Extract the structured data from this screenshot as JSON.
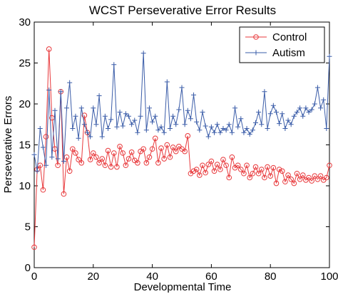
{
  "chart_data": {
    "type": "line",
    "title": "WCST Perseverative Error Results",
    "xlabel": "Developmental Time",
    "ylabel": "Perseverative Errors",
    "xlim": [
      0,
      100
    ],
    "ylim": [
      0,
      30
    ],
    "xticks": [
      0,
      20,
      40,
      60,
      80,
      100
    ],
    "yticks": [
      0,
      5,
      10,
      15,
      20,
      25,
      30
    ],
    "grid": false,
    "legend_position": "top-right",
    "series": [
      {
        "name": "Control",
        "color": "#e8383b",
        "marker": "circle",
        "x": [
          0,
          1,
          2,
          3,
          4,
          5,
          6,
          7,
          8,
          9,
          10,
          11,
          12,
          13,
          14,
          15,
          16,
          17,
          18,
          19,
          20,
          21,
          22,
          23,
          24,
          25,
          26,
          27,
          28,
          29,
          30,
          31,
          32,
          33,
          34,
          35,
          36,
          37,
          38,
          39,
          40,
          41,
          42,
          43,
          44,
          45,
          46,
          47,
          48,
          49,
          50,
          51,
          52,
          53,
          54,
          55,
          56,
          57,
          58,
          59,
          60,
          61,
          62,
          63,
          64,
          65,
          66,
          67,
          68,
          69,
          70,
          71,
          72,
          73,
          74,
          75,
          76,
          77,
          78,
          79,
          80,
          81,
          82,
          83,
          84,
          85,
          86,
          87,
          88,
          89,
          90,
          91,
          92,
          93,
          94,
          95,
          96,
          97,
          98,
          99,
          100
        ],
        "y": [
          2.5,
          12,
          12.5,
          9.5,
          16,
          26.7,
          18.3,
          14.5,
          12.5,
          21.5,
          9,
          13.5,
          11.8,
          14.5,
          14,
          13.2,
          12.8,
          18.6,
          16.5,
          13.2,
          14,
          13.5,
          12.8,
          13.3,
          12.5,
          14.3,
          12.3,
          14,
          12.3,
          14.8,
          14,
          12.5,
          13.3,
          14.1,
          13.1,
          12.8,
          14.2,
          14.5,
          12.8,
          13.5,
          14.5,
          15.8,
          12.8,
          14.6,
          13.3,
          15,
          13.5,
          14.7,
          14.2,
          14.8,
          14.5,
          14.2,
          16.1,
          11.5,
          11.8,
          12,
          11.3,
          12.5,
          11.6,
          12.6,
          13,
          11.8,
          12.6,
          12,
          13.2,
          12.5,
          11,
          13.5,
          12.2,
          12.5,
          12,
          11.5,
          12.5,
          11,
          11.5,
          12.3,
          11.5,
          12,
          11,
          12.3,
          11.2,
          12.2,
          10.3,
          12,
          11.8,
          10.5,
          11.3,
          10.8,
          10.3,
          11.5,
          10.8,
          11.3,
          10.7,
          11,
          10.6,
          11.2,
          10.8,
          11.2,
          10.7,
          11,
          12.5
        ]
      },
      {
        "name": "Autism",
        "color": "#3a5ca8",
        "marker": "plus",
        "x": [
          0,
          1,
          2,
          3,
          4,
          5,
          6,
          7,
          8,
          9,
          10,
          11,
          12,
          13,
          14,
          15,
          16,
          17,
          18,
          19,
          20,
          21,
          22,
          23,
          24,
          25,
          26,
          27,
          28,
          29,
          30,
          31,
          32,
          33,
          34,
          35,
          36,
          37,
          38,
          39,
          40,
          41,
          42,
          43,
          44,
          45,
          46,
          47,
          48,
          49,
          50,
          51,
          52,
          53,
          54,
          55,
          56,
          57,
          58,
          59,
          60,
          61,
          62,
          63,
          64,
          65,
          66,
          67,
          68,
          69,
          70,
          71,
          72,
          73,
          74,
          75,
          76,
          77,
          78,
          79,
          80,
          81,
          82,
          83,
          84,
          85,
          86,
          87,
          88,
          89,
          90,
          91,
          92,
          93,
          94,
          95,
          96,
          97,
          98,
          99,
          100
        ],
        "y": [
          13.8,
          11.8,
          17,
          14.7,
          12.5,
          21.7,
          13.5,
          19.2,
          13.3,
          21.5,
          13,
          19.5,
          22.6,
          17,
          18.5,
          15.8,
          19.5,
          17.5,
          16.5,
          16,
          19.5,
          17.5,
          21,
          16,
          18.5,
          17,
          18.1,
          24.8,
          17.2,
          19,
          17.3,
          18.8,
          18.5,
          17.5,
          18,
          16.5,
          18.5,
          26.2,
          16.8,
          19.5,
          17.8,
          18.5,
          16.8,
          17.2,
          16.5,
          22.7,
          17,
          18.5,
          17.5,
          19.3,
          22,
          17.5,
          19.2,
          18.2,
          21.1,
          17.8,
          16.8,
          19,
          17.3,
          16,
          17.2,
          16.5,
          17.5,
          16.5,
          17,
          16.8,
          17.5,
          16.5,
          19.5,
          17.2,
          18.2,
          16.5,
          17,
          16.3,
          16.8,
          17.7,
          19,
          17.5,
          21.5,
          17,
          18.8,
          19.8,
          19,
          17.6,
          18.8,
          17,
          18,
          17.5,
          18.5,
          19,
          19.5,
          18.5,
          19.5,
          19,
          19.3,
          20,
          22,
          19.5,
          20.5,
          17,
          25.8
        ]
      }
    ]
  }
}
